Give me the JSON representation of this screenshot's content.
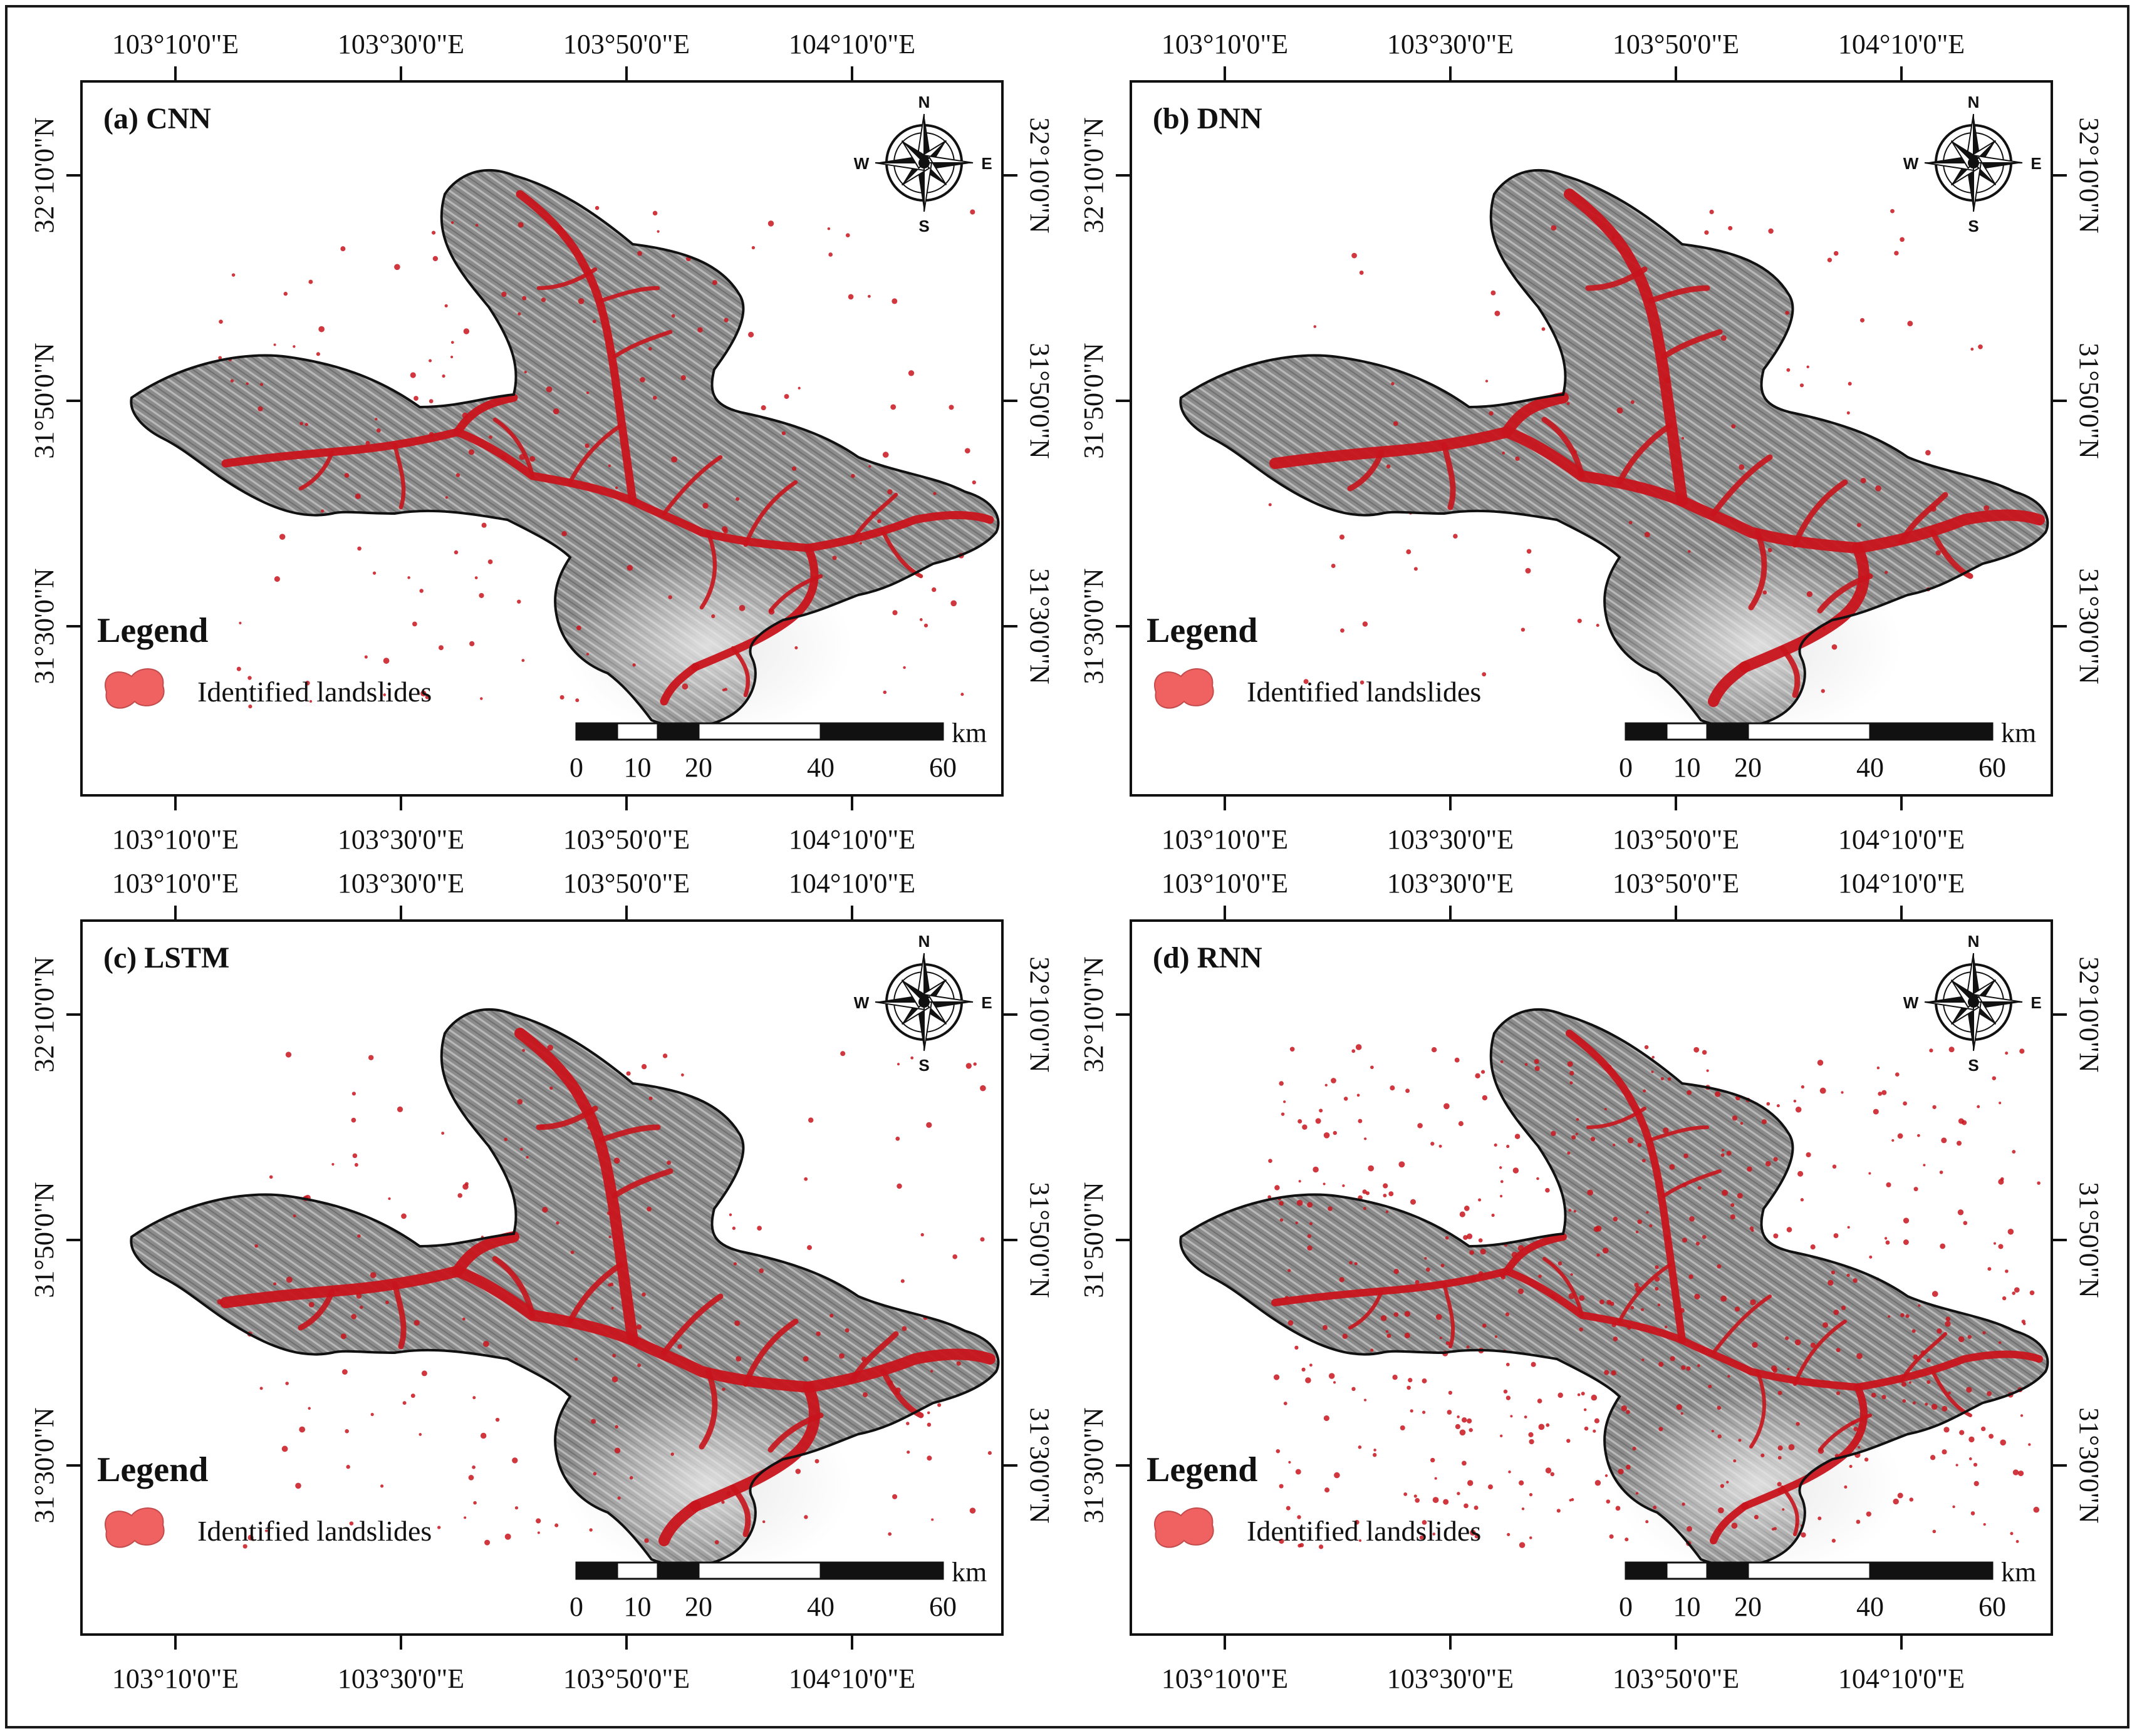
{
  "figure": {
    "border_color": "#1a1a1a"
  },
  "panels": [
    {
      "label": "(a) CNN",
      "lon_labels": [
        "103°10'0\"E",
        "103°30'0\"E",
        "103°50'0\"E",
        "104°10'0\"E"
      ],
      "lat_labels": [
        "32°10'0\"N",
        "31°50'0\"N",
        "31°30'0\"N"
      ]
    },
    {
      "label": "(b) DNN",
      "lon_labels": [
        "103°10'0\"E",
        "103°30'0\"E",
        "103°50'0\"E",
        "104°10'0\"E"
      ],
      "lat_labels": [
        "32°10'0\"N",
        "31°50'0\"N",
        "31°30'0\"N"
      ]
    },
    {
      "label": "(c) LSTM",
      "lon_labels": [
        "103°10'0\"E",
        "103°30'0\"E",
        "103°50'0\"E",
        "104°10'0\"E"
      ],
      "lat_labels": [
        "32°10'0\"N",
        "31°50'0\"N",
        "31°30'0\"N"
      ]
    },
    {
      "label": "(d) RNN",
      "lon_labels": [
        "103°10'0\"E",
        "103°30'0\"E",
        "103°50'0\"E",
        "104°10'0\"E"
      ],
      "lat_labels": [
        "32°10'0\"N",
        "31°50'0\"N",
        "31°30'0\"N"
      ]
    }
  ],
  "legend": {
    "title": "Legend",
    "item": "Identified landslides",
    "swatch_color": "#f06262"
  },
  "scalebar": {
    "unit": "km",
    "ticks": [
      "0",
      "10",
      "20",
      "40",
      "60"
    ]
  },
  "compass": {
    "n": "N",
    "s": "S",
    "e": "E",
    "w": "W"
  },
  "colors": {
    "terrain": "#8e8e8e",
    "terrain_light": "#d2d2d2",
    "landslide": "#c8141c",
    "outline": "#111111"
  }
}
